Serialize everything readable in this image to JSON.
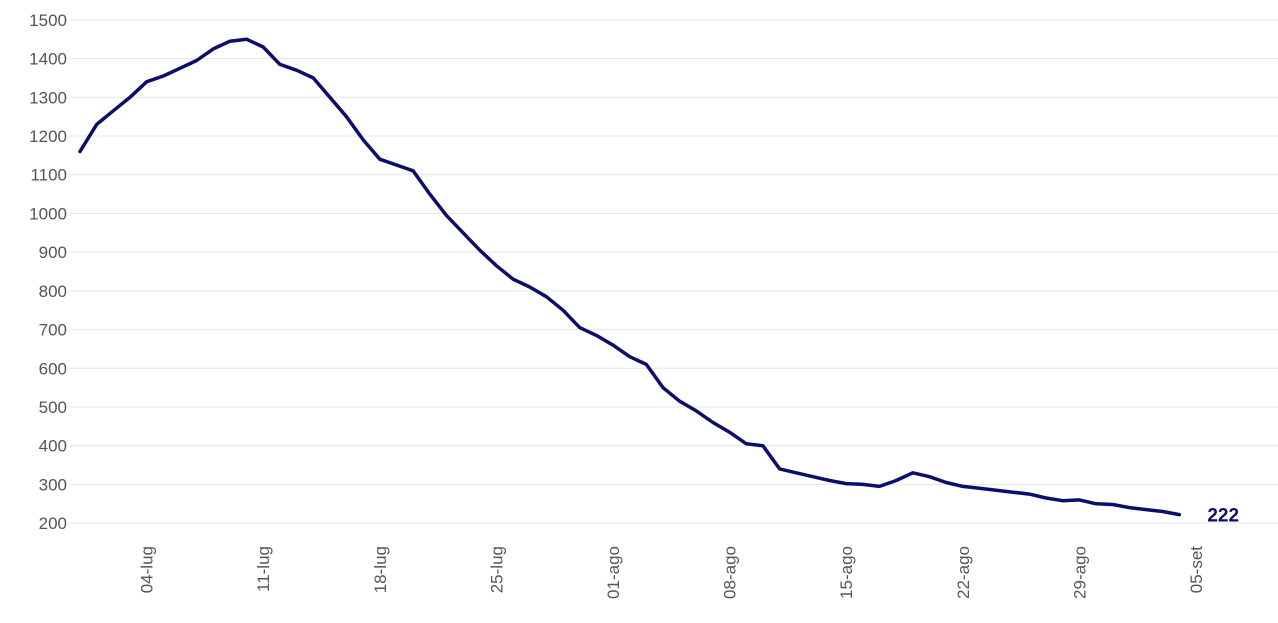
{
  "chart_data": {
    "type": "line",
    "categories": [
      null,
      null,
      null,
      null,
      "04-lug",
      null,
      null,
      null,
      null,
      null,
      null,
      "11-lug",
      null,
      null,
      null,
      null,
      null,
      null,
      "18-lug",
      null,
      null,
      null,
      null,
      null,
      null,
      "25-lug",
      null,
      null,
      null,
      null,
      null,
      null,
      "01-ago",
      null,
      null,
      null,
      null,
      null,
      null,
      "08-ago",
      null,
      null,
      null,
      null,
      null,
      null,
      "15-ago",
      null,
      null,
      null,
      null,
      null,
      null,
      "22-ago",
      null,
      null,
      null,
      null,
      null,
      null,
      "29-ago",
      null,
      null,
      null,
      null,
      null,
      null,
      "05-set"
    ],
    "series": [
      {
        "color": "#0d0d6b",
        "values": [
          1160,
          1230,
          1265,
          1300,
          1340,
          1355,
          1375,
          1395,
          1425,
          1445,
          1450,
          1430,
          1385,
          1370,
          1350,
          1300,
          1250,
          1190,
          1140,
          1125,
          1110,
          1050,
          995,
          950,
          905,
          865,
          830,
          810,
          785,
          750,
          705,
          685,
          660,
          630,
          610,
          550,
          515,
          490,
          460,
          435,
          405,
          400,
          340,
          330,
          320,
          310,
          302,
          300,
          295,
          310,
          330,
          320,
          305,
          295,
          290,
          285,
          280,
          275,
          265,
          258,
          260,
          250,
          248,
          240,
          235,
          230,
          222,
          null
        ]
      }
    ],
    "label_last": true,
    "ylim": [
      190,
      1510
    ],
    "yticks": [
      200,
      300,
      400,
      500,
      600,
      700,
      800,
      900,
      1000,
      1100,
      1200,
      1300,
      1400,
      1500
    ],
    "grid": true
  }
}
